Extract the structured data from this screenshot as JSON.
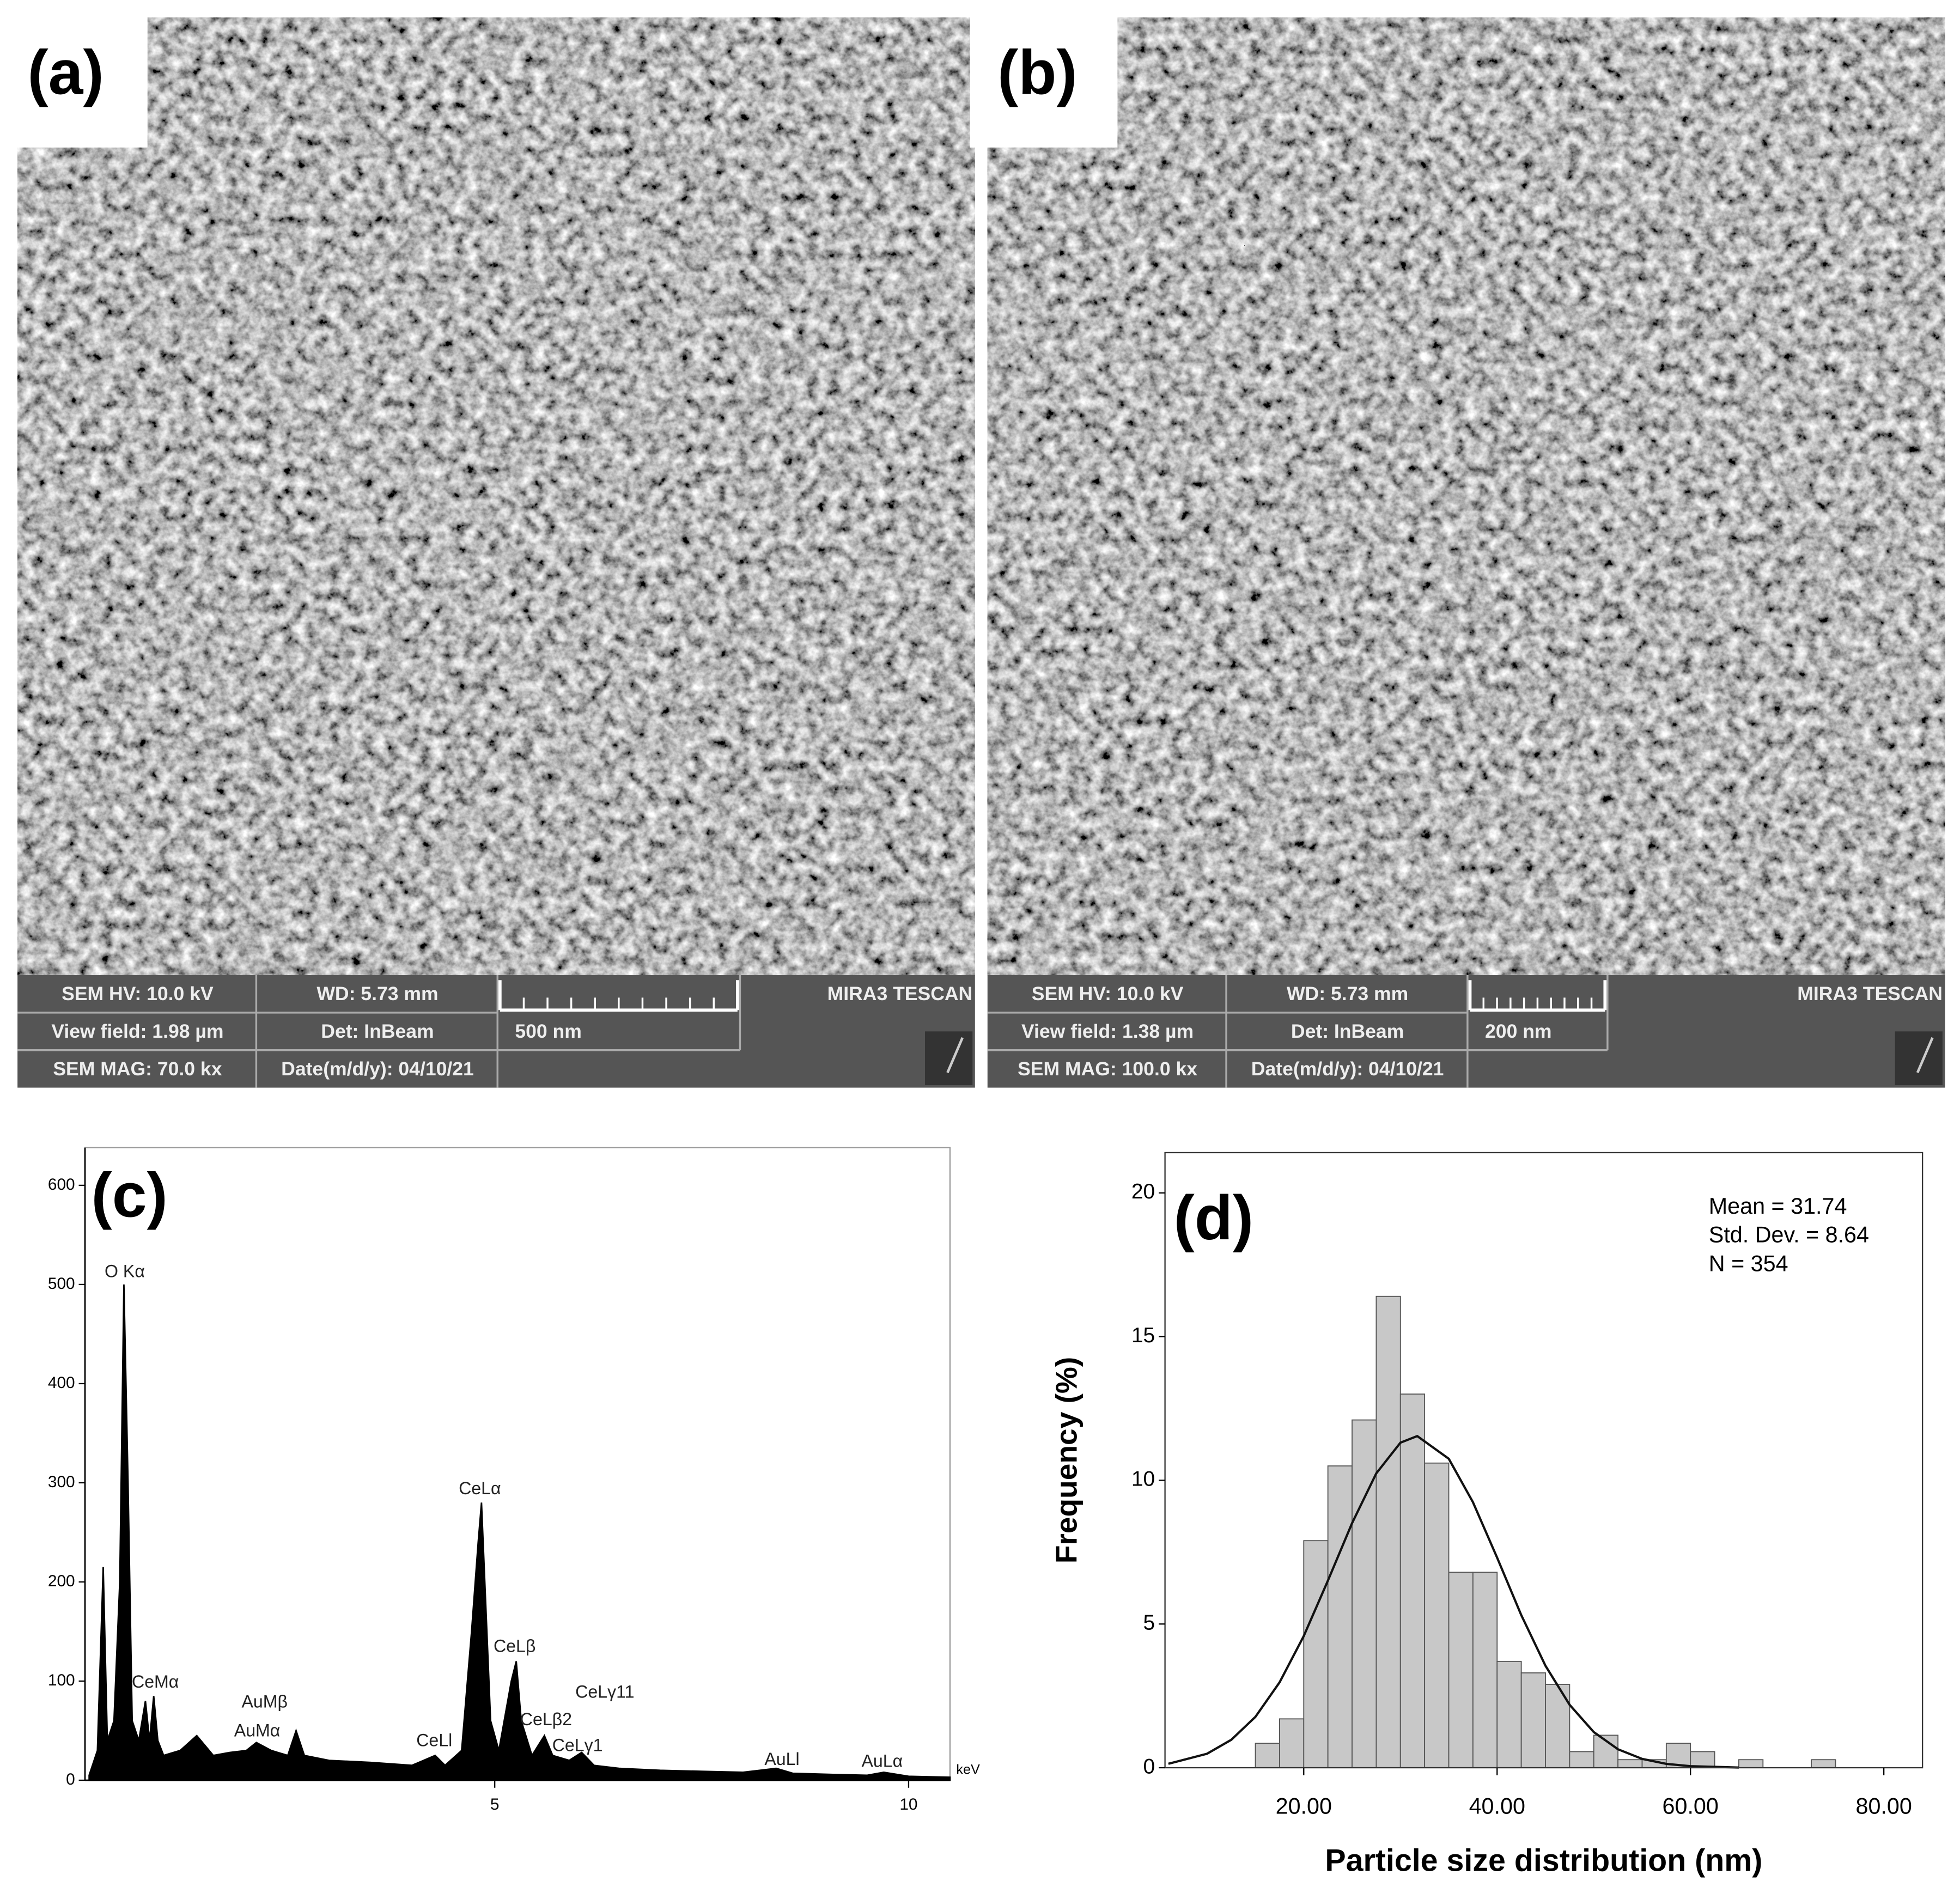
{
  "panels": [
    {
      "label": "(a)",
      "hv": "SEM HV: 10.0 kV",
      "wd": "WD: 5.73 mm",
      "brand": "MIRA3 TESCAN",
      "view_field": "View field: 1.98 µm",
      "detector": "Det: InBeam",
      "scale": "500 nm",
      "mag": "SEM MAG: 70.0 kx",
      "date": "Date(m/d/y): 04/10/21"
    },
    {
      "label": "(b)",
      "hv": "SEM HV: 10.0 kV",
      "wd": "WD: 5.73 mm",
      "brand": "MIRA3 TESCAN",
      "view_field": "View field: 1.38 µm",
      "detector": "Det: InBeam",
      "scale": "200 nm",
      "mag": "SEM MAG: 100.0 kx",
      "date": "Date(m/d/y): 04/10/21"
    }
  ],
  "chart_data": [
    {
      "type": "area",
      "label": "(c)",
      "x_unit": "keV",
      "color": "#000000",
      "x": [
        0.1,
        0.2,
        0.27,
        0.32,
        0.4,
        0.47,
        0.52,
        0.57,
        0.62,
        0.7,
        0.78,
        0.83,
        0.88,
        0.93,
        1.0,
        1.2,
        1.4,
        1.6,
        1.8,
        2.0,
        2.12,
        2.3,
        2.5,
        2.6,
        2.7,
        3.0,
        3.5,
        4.0,
        4.28,
        4.4,
        4.6,
        4.72,
        4.8,
        4.84,
        4.88,
        4.95,
        5.05,
        5.2,
        5.26,
        5.32,
        5.45,
        5.6,
        5.7,
        5.9,
        6.05,
        6.2,
        6.5,
        7.0,
        7.5,
        8.0,
        8.4,
        8.6,
        9.0,
        9.5,
        9.7,
        10.0,
        10.5
      ],
      "values": [
        5,
        30,
        215,
        40,
        60,
        200,
        500,
        300,
        60,
        40,
        80,
        40,
        85,
        40,
        25,
        30,
        45,
        25,
        28,
        30,
        38,
        30,
        25,
        50,
        25,
        20,
        18,
        15,
        25,
        15,
        30,
        150,
        240,
        280,
        200,
        60,
        30,
        100,
        120,
        60,
        25,
        45,
        25,
        20,
        28,
        15,
        12,
        10,
        9,
        8,
        12,
        7,
        6,
        5,
        8,
        4,
        3
      ],
      "xlim": [
        0.05,
        10.5
      ],
      "xticks": [
        5,
        10
      ],
      "ylim": [
        0,
        638
      ],
      "yticks": [
        0,
        100,
        200,
        300,
        400,
        500,
        600
      ],
      "annotations": [
        {
          "text": "O Kα",
          "x": 0.53,
          "y": 512
        },
        {
          "text": "CeMα",
          "x": 0.9,
          "y": 98
        },
        {
          "text": "AuMβ",
          "x": 2.22,
          "y": 78
        },
        {
          "text": "AuMα",
          "x": 2.13,
          "y": 49
        },
        {
          "text": "CeLl",
          "x": 4.27,
          "y": 39
        },
        {
          "text": "CeLα",
          "x": 4.82,
          "y": 293
        },
        {
          "text": "CeLβ",
          "x": 5.24,
          "y": 134
        },
        {
          "text": "CeLβ2",
          "x": 5.62,
          "y": 60
        },
        {
          "text": "CeLγ11",
          "x": 6.33,
          "y": 88
        },
        {
          "text": "CeLγ1",
          "x": 6.0,
          "y": 34
        },
        {
          "text": "AuLl",
          "x": 8.47,
          "y": 20
        },
        {
          "text": "AuLα",
          "x": 9.68,
          "y": 18
        }
      ]
    },
    {
      "type": "histogram",
      "label": "(d)",
      "x_label": "Particle size distribution (nm)",
      "y_label": "Frequency (%)",
      "color": "#c8c8c8",
      "bins": [
        15,
        17.5,
        20,
        22.5,
        25,
        27.5,
        30,
        32.5,
        35,
        37.5,
        40,
        42.5,
        45,
        47.5,
        50,
        52.5,
        55,
        57.5,
        60,
        62.5,
        65,
        67.5,
        70,
        72.5,
        75
      ],
      "values": [
        0.85,
        1.7,
        7.9,
        10.5,
        12.1,
        16.4,
        13.0,
        10.6,
        6.8,
        6.8,
        3.7,
        3.3,
        2.9,
        0.56,
        1.13,
        0.28,
        0.28,
        0.85,
        0.56,
        0,
        0.28,
        0,
        0,
        0.28
      ],
      "curve": {
        "x": [
          6,
          10,
          12.5,
          15,
          17.5,
          20,
          22.5,
          25,
          27.5,
          30,
          31.74,
          35,
          37.5,
          40,
          42.5,
          45,
          47.5,
          50,
          52.5,
          55,
          57.5,
          60,
          65
        ],
        "values": [
          0.137,
          0.487,
          0.97,
          1.77,
          2.97,
          4.58,
          6.51,
          8.51,
          10.24,
          11.31,
          11.54,
          10.75,
          9.24,
          7.31,
          5.31,
          3.55,
          2.19,
          1.24,
          0.643,
          0.308,
          0.135,
          0.055,
          0.007
        ]
      },
      "stats": [
        "Mean = 31.74",
        "Std. Dev. = 8.64",
        "N = 354"
      ],
      "xlim": [
        5.65,
        84
      ],
      "xticks": [
        {
          "value": 20,
          "label": "20.00"
        },
        {
          "value": 40,
          "label": "40.00"
        },
        {
          "value": 60,
          "label": "60.00"
        },
        {
          "value": 80,
          "label": "80.00"
        }
      ],
      "ylim": [
        0,
        21.4
      ],
      "yticks": [
        0,
        5,
        10,
        15,
        20
      ]
    }
  ]
}
